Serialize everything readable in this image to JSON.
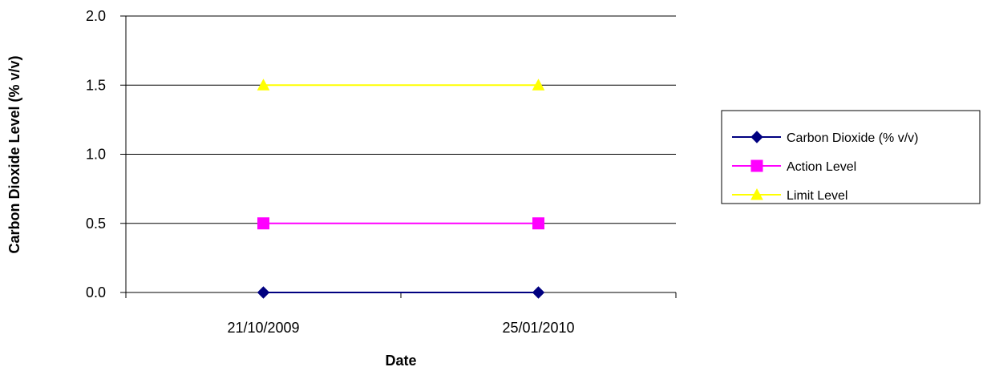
{
  "chart_data": {
    "type": "line",
    "title": "",
    "xlabel": "Date",
    "ylabel": "Carbon Dioxide Level (% v/v)",
    "categories": [
      "21/10/2009",
      "25/01/2010"
    ],
    "ylim": [
      0,
      2.0
    ],
    "yticks": [
      "0.0",
      "0.5",
      "1.0",
      "1.5",
      "2.0"
    ],
    "grid": "horizontal",
    "legend_position": "right",
    "series": [
      {
        "name": "Carbon Dioxide (% v/v)",
        "values": [
          0.0,
          0.0
        ],
        "color": "#000080",
        "marker": "diamond"
      },
      {
        "name": "Action Level",
        "values": [
          0.5,
          0.5
        ],
        "color": "#ff00ff",
        "marker": "square"
      },
      {
        "name": "Limit Level",
        "values": [
          1.5,
          1.5
        ],
        "color": "#ffff00",
        "marker": "triangle"
      }
    ]
  }
}
